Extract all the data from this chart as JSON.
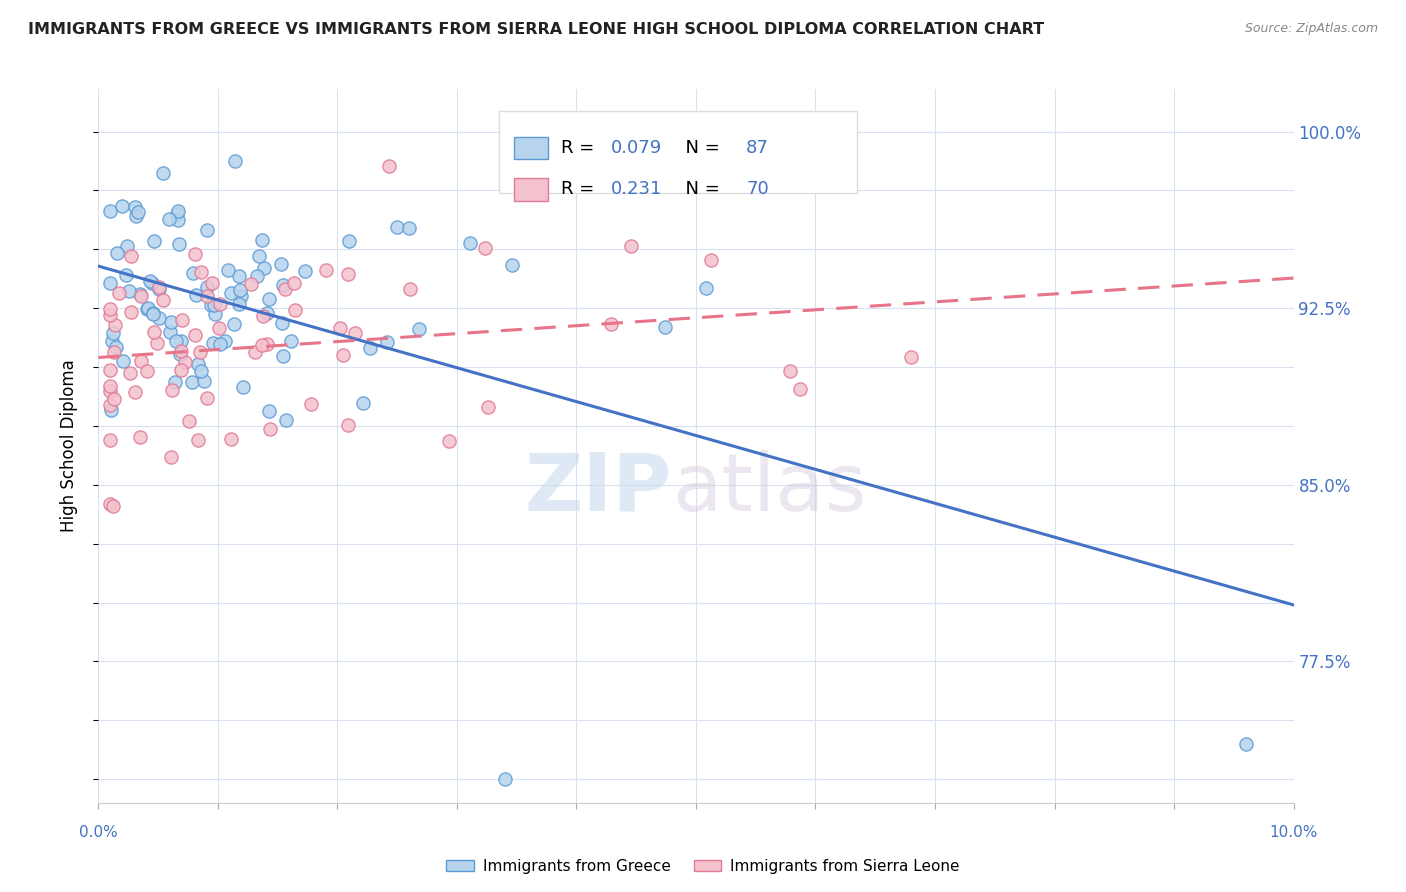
{
  "title": "IMMIGRANTS FROM GREECE VS IMMIGRANTS FROM SIERRA LEONE HIGH SCHOOL DIPLOMA CORRELATION CHART",
  "source": "Source: ZipAtlas.com",
  "ylabel": "High School Diploma",
  "legend_label_greece": "Immigrants from Greece",
  "legend_label_sierra": "Immigrants from Sierra Leone",
  "xlim": [
    0.0,
    0.1
  ],
  "ylim": [
    0.715,
    1.018
  ],
  "r_greece": 0.079,
  "n_greece": 87,
  "r_sierra": 0.231,
  "n_sierra": 70,
  "color_greece_fill": "#b8d4ed",
  "color_greece_edge": "#5b9bd5",
  "color_sierra_fill": "#f4c2cc",
  "color_sierra_edge": "#e07898",
  "color_greece_line": "#4472c4",
  "color_sierra_line": "#e8748a",
  "color_text_blue": "#4472c4",
  "color_grid": "#d9e1f0",
  "ytick_pos": [
    0.725,
    0.75,
    0.775,
    0.8,
    0.825,
    0.85,
    0.875,
    0.9,
    0.925,
    0.95,
    0.975,
    1.0
  ],
  "ytick_labels": [
    "",
    "",
    "77.5%",
    "",
    "",
    "85.0%",
    "",
    "",
    "92.5%",
    "",
    "",
    "100.0%"
  ],
  "xtick_pos": [
    0.0,
    0.01,
    0.02,
    0.03,
    0.04,
    0.05,
    0.06,
    0.07,
    0.08,
    0.09,
    0.1
  ],
  "watermark_zip_color": "#c5d8ed",
  "watermark_atlas_color": "#d4c8dc"
}
